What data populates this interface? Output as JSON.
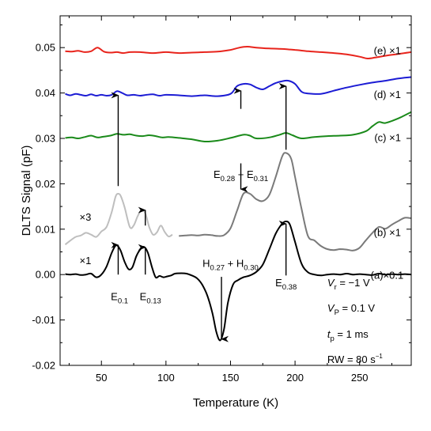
{
  "chart_data": {
    "type": "line",
    "xlabel": "Temperature (K)",
    "ylabel": "DLTS Signal (pF)",
    "xlim": [
      18,
      290
    ],
    "ylim": [
      -0.02,
      0.057
    ],
    "xticks": [
      50,
      100,
      150,
      200,
      250
    ],
    "yticks": [
      -0.02,
      -0.01,
      0.0,
      0.01,
      0.02,
      0.03,
      0.04,
      0.05
    ],
    "ytick_labels": [
      "-0.02",
      "-0.01",
      "0.00",
      "0.01",
      "0.02",
      "0.03",
      "0.04",
      "0.05"
    ],
    "grid": false,
    "series": [
      {
        "name": "(e) ×1",
        "color": "#e8241c",
        "x": [
          22,
          27,
          32,
          37,
          42,
          47,
          52,
          57,
          62,
          67,
          72,
          80,
          90,
          100,
          110,
          120,
          130,
          140,
          150,
          157,
          163,
          170,
          180,
          190,
          195,
          200,
          210,
          220,
          230,
          240,
          250,
          256,
          262,
          270,
          280,
          290
        ],
        "y": [
          0.0492,
          0.0491,
          0.0493,
          0.049,
          0.0492,
          0.05,
          0.0491,
          0.0489,
          0.049,
          0.0488,
          0.049,
          0.049,
          0.0488,
          0.049,
          0.0488,
          0.0489,
          0.049,
          0.0491,
          0.0495,
          0.05,
          0.0502,
          0.05,
          0.0498,
          0.0497,
          0.0496,
          0.0495,
          0.0492,
          0.049,
          0.0488,
          0.0485,
          0.048,
          0.0476,
          0.0478,
          0.0482,
          0.0486,
          0.049
        ]
      },
      {
        "name": "(d) ×1",
        "color": "#1c1cd4",
        "x": [
          22,
          26,
          30,
          34,
          38,
          42,
          46,
          50,
          54,
          58,
          62,
          66,
          70,
          75,
          80,
          85,
          90,
          95,
          100,
          110,
          120,
          130,
          140,
          150,
          155,
          160,
          165,
          170,
          175,
          180,
          185,
          190,
          195,
          200,
          205,
          210,
          220,
          230,
          240,
          250,
          260,
          270,
          280,
          290
        ],
        "y": [
          0.0398,
          0.0395,
          0.0398,
          0.0396,
          0.0394,
          0.0397,
          0.0394,
          0.0396,
          0.0394,
          0.0396,
          0.0404,
          0.04,
          0.0395,
          0.0396,
          0.0394,
          0.0396,
          0.0397,
          0.0394,
          0.0396,
          0.0395,
          0.0393,
          0.0395,
          0.0393,
          0.0398,
          0.0415,
          0.042,
          0.0419,
          0.0412,
          0.0408,
          0.0415,
          0.0422,
          0.0426,
          0.0427,
          0.042,
          0.0403,
          0.0399,
          0.0398,
          0.0405,
          0.0412,
          0.0418,
          0.0423,
          0.0427,
          0.0432,
          0.0435
        ]
      },
      {
        "name": "(c) ×1",
        "color": "#1a8a1a",
        "x": [
          22,
          27,
          32,
          37,
          42,
          47,
          52,
          57,
          62,
          67,
          72,
          77,
          82,
          87,
          92,
          97,
          102,
          110,
          120,
          130,
          140,
          150,
          160,
          165,
          170,
          180,
          188,
          193,
          198,
          205,
          215,
          225,
          235,
          245,
          255,
          260,
          265,
          270,
          280,
          290
        ],
        "y": [
          0.0301,
          0.0302,
          0.03,
          0.0303,
          0.0306,
          0.0302,
          0.0304,
          0.0306,
          0.031,
          0.0308,
          0.0309,
          0.0306,
          0.0305,
          0.0307,
          0.0305,
          0.0302,
          0.0303,
          0.0301,
          0.0298,
          0.0293,
          0.0295,
          0.0301,
          0.0308,
          0.0306,
          0.03,
          0.0302,
          0.0308,
          0.0312,
          0.0307,
          0.03,
          0.0303,
          0.0305,
          0.0306,
          0.0308,
          0.0316,
          0.0327,
          0.0336,
          0.0334,
          0.0344,
          0.0358
        ]
      },
      {
        "name": "(b) ×1",
        "color": "#7a7a7a",
        "x": [
          110,
          115,
          120,
          125,
          130,
          135,
          140,
          145,
          150,
          155,
          160,
          165,
          170,
          175,
          180,
          185,
          190,
          193,
          197,
          200,
          205,
          210,
          215,
          220,
          225,
          230,
          235,
          240,
          245,
          250,
          255,
          260,
          265,
          270,
          275,
          280,
          285,
          290
        ],
        "y": [
          0.0085,
          0.0086,
          0.0087,
          0.0086,
          0.0088,
          0.0087,
          0.0085,
          0.0087,
          0.0102,
          0.014,
          0.0178,
          0.0178,
          0.0166,
          0.0162,
          0.0175,
          0.0215,
          0.026,
          0.0268,
          0.0255,
          0.0215,
          0.0145,
          0.0085,
          0.0075,
          0.0063,
          0.0056,
          0.0054,
          0.0056,
          0.0055,
          0.0053,
          0.0059,
          0.0076,
          0.0092,
          0.0105,
          0.0101,
          0.011,
          0.0118,
          0.0125,
          0.0124
        ]
      },
      {
        "name": "×3",
        "color": "#bebebe",
        "x": [
          22,
          26,
          30,
          34,
          38,
          42,
          46,
          50,
          54,
          58,
          61,
          63,
          65,
          68,
          72,
          75,
          78,
          81,
          84,
          87,
          90,
          93,
          96,
          99,
          102,
          105
        ],
        "y": [
          0.0066,
          0.0075,
          0.0083,
          0.0086,
          0.0092,
          0.0088,
          0.0083,
          0.0095,
          0.0105,
          0.0138,
          0.0172,
          0.0178,
          0.0173,
          0.0148,
          0.0105,
          0.0108,
          0.0128,
          0.0142,
          0.0135,
          0.0105,
          0.0088,
          0.0093,
          0.0108,
          0.0094,
          0.0084,
          0.0088
        ]
      },
      {
        "name": "(a) ×0.1",
        "color": "#000000",
        "x": [
          22,
          26,
          30,
          34,
          38,
          42,
          46,
          50,
          54,
          58,
          61,
          63,
          65,
          68,
          71,
          74,
          77,
          80,
          83,
          86,
          89,
          92,
          95,
          98,
          101,
          104,
          107,
          112,
          116,
          120,
          124,
          128,
          132,
          136,
          139,
          142,
          145,
          148,
          152,
          156,
          160,
          165,
          170,
          175,
          180,
          185,
          190,
          193,
          196,
          200,
          205,
          210,
          215,
          220,
          225,
          230,
          235,
          240,
          245,
          250,
          255,
          260,
          265,
          270,
          275,
          280,
          285,
          290
        ],
        "y": [
          0.0001,
          0.0,
          0.0001,
          -0.0001,
          0.0,
          0.0002,
          -0.0006,
          0.0,
          0.0018,
          0.0048,
          0.0064,
          0.0062,
          0.0052,
          0.0028,
          0.0012,
          0.0016,
          0.004,
          0.0055,
          0.0061,
          0.0048,
          0.0018,
          -0.0006,
          -0.0003,
          -0.0006,
          -0.0004,
          -0.0002,
          0.0002,
          0.0003,
          0.0002,
          -0.0002,
          -0.0008,
          -0.0022,
          -0.0046,
          -0.0085,
          -0.0126,
          -0.0145,
          -0.012,
          -0.0062,
          -0.0022,
          -0.0012,
          -0.0006,
          -0.0002,
          0.0006,
          0.0022,
          0.0055,
          0.009,
          0.0112,
          0.0117,
          0.011,
          0.0072,
          0.0024,
          0.0005,
          0.0,
          -0.0002,
          0.0,
          0.0001,
          0.0,
          0.0002,
          0.0,
          0.0001,
          0.0,
          -0.0001,
          0.0002,
          0.0,
          0.0001,
          0.0,
          0.0001,
          0.0
        ]
      }
    ],
    "series_labels": [
      {
        "x": 282,
        "y": 0.0493,
        "text": "(e) ×1"
      },
      {
        "x": 282,
        "y": 0.0397,
        "text": "(d) ×1"
      },
      {
        "x": 282,
        "y": 0.0302,
        "text": "(c) ×1"
      },
      {
        "x": 282,
        "y": 0.0093,
        "text": "(b) ×1"
      },
      {
        "x": 284,
        "y": -0.0001,
        "text": "(a)×0.1"
      },
      {
        "x": 33,
        "y": 0.0127,
        "text": "×3"
      },
      {
        "x": 33,
        "y": 0.0031,
        "text": "×1"
      }
    ],
    "arrows": [
      {
        "x": 63,
        "from": 0.0,
        "to": 0.0065
      },
      {
        "x": 63,
        "from": 0.0195,
        "to": 0.0395
      },
      {
        "x": 84,
        "from": 0.0,
        "to": 0.006
      },
      {
        "x": 84,
        "from": 0.0108,
        "to": 0.0142
      },
      {
        "x": 158,
        "from": 0.0365,
        "to": 0.0405
      },
      {
        "x": 158,
        "from": 0.0245,
        "to": 0.0188
      },
      {
        "x": 143,
        "from": -0.0005,
        "to": -0.0142
      },
      {
        "x": 193,
        "from": -0.0002,
        "to": 0.0112
      },
      {
        "x": 193,
        "from": 0.0275,
        "to": 0.0415
      }
    ],
    "annotations": [
      {
        "x": 64,
        "y": -0.0048,
        "main": "E",
        "sub": "0.1",
        "anchor": "middle"
      },
      {
        "x": 88,
        "y": -0.0048,
        "main": "E",
        "sub": "0.13",
        "anchor": "middle"
      },
      {
        "x": 193,
        "y": -0.0017,
        "main": "E",
        "sub": "0.38",
        "anchor": "middle"
      },
      {
        "x": 158,
        "y": 0.0222,
        "main": "E",
        "sub": "0.28",
        "connector": " + ",
        "main2": "E",
        "sub2": "0.31",
        "anchor": "middle"
      },
      {
        "x": 150,
        "y": 0.0026,
        "main": "H",
        "sub": "0.27",
        "connector": " + ",
        "main2": "H",
        "sub2": "0.30",
        "anchor": "middle"
      }
    ],
    "params": [
      {
        "x": 225,
        "y": -0.0017,
        "var": "V",
        "var_sub": "r",
        "value": " = −1 V"
      },
      {
        "x": 225,
        "y": -0.0073,
        "var": "V",
        "var_sub": "P",
        "value": " = 0.1 V"
      },
      {
        "x": 225,
        "y": -0.013,
        "var": "t",
        "var_sub": "p",
        "value": " = 1 ms"
      },
      {
        "x": 225,
        "y": -0.0186,
        "var": "RW",
        "var_sub": "",
        "value": " = 80 s",
        "sup": "−1"
      }
    ]
  }
}
